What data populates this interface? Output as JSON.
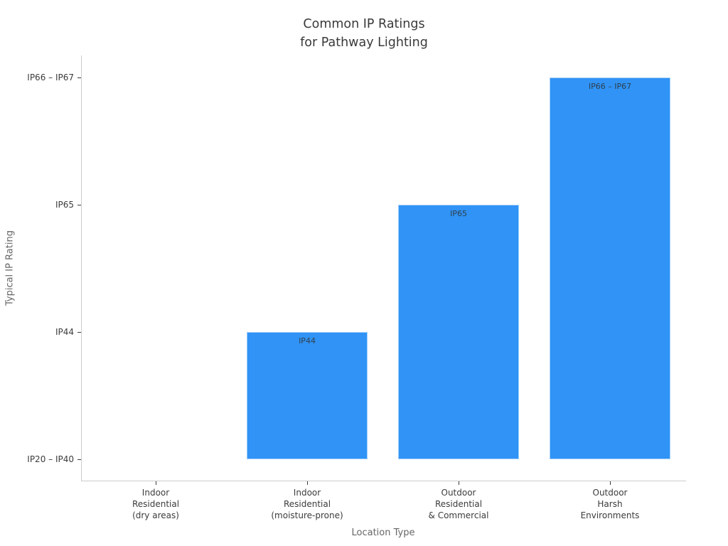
{
  "chart_data": {
    "type": "bar",
    "title": "Common IP Ratings\nfor Pathway Lighting",
    "xlabel": "Location Type",
    "ylabel": "Typical IP Rating",
    "categories": [
      "Indoor\nResidential\n(dry areas)",
      "Indoor\nResidential\n(moisture-prone)",
      "Outdoor\nResidential\n& Commercial",
      "Outdoor\nHarsh\nEnvironments"
    ],
    "values": [
      0,
      1,
      2,
      3
    ],
    "y_tick_labels": [
      "IP20 – IP40",
      "IP44",
      "IP65",
      "IP66 – IP67"
    ],
    "bar_value_labels": [
      "",
      "IP44",
      "IP65",
      "IP66 – IP67"
    ],
    "bar_color": "#3093F5",
    "ylim": [
      -0.17,
      3.18
    ],
    "grid": false,
    "legend": false
  }
}
